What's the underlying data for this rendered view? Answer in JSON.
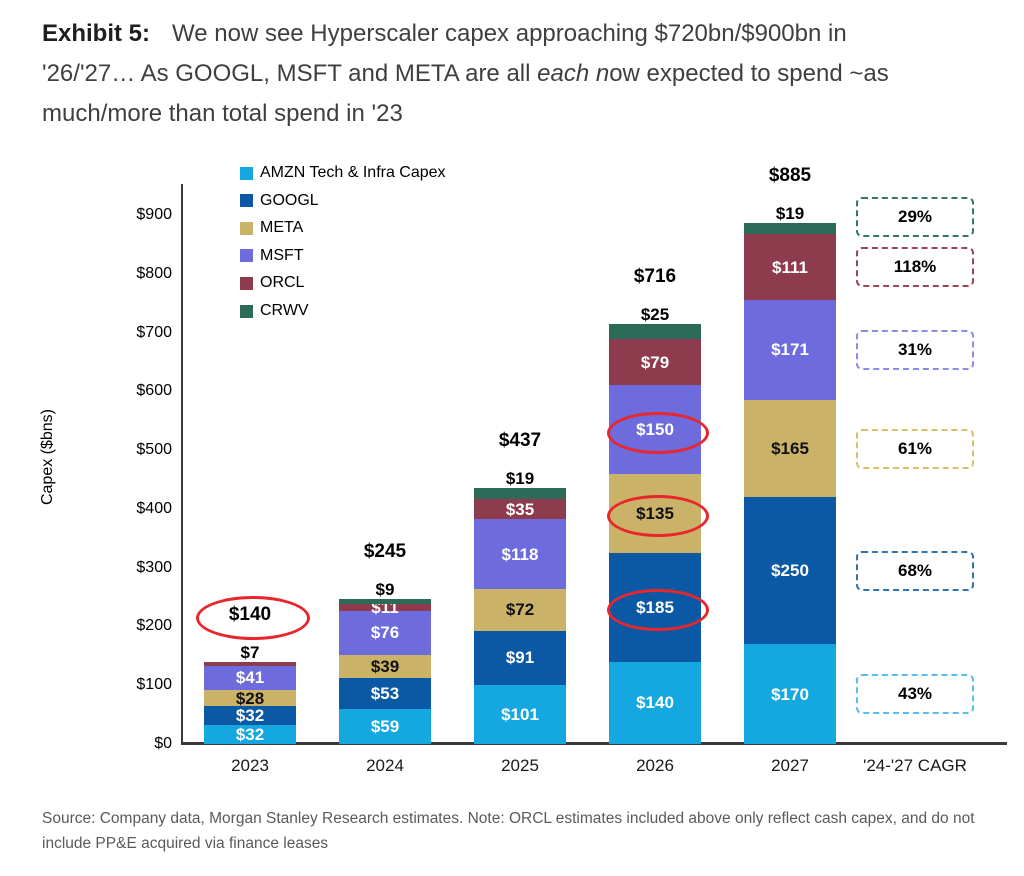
{
  "title": {
    "exhibit": "Exhibit 5:",
    "line1": "We now see Hyperscaler capex approaching $720bn/$900bn in",
    "line2_pre": "'26/'27… As GOOGL, MSFT and META are all ",
    "line2_italic": "each n",
    "line2_post": "ow expected to spend ~as",
    "line3": "much/more than total spend in '23"
  },
  "chart_data": {
    "type": "bar",
    "stacked": true,
    "ylabel": "Capex ($bns)",
    "ylim": [
      0,
      900
    ],
    "grid": false,
    "yticks": [
      "$0",
      "$100",
      "$200",
      "$300",
      "$400",
      "$500",
      "$600",
      "$700",
      "$800",
      "$900"
    ],
    "categories": [
      "2023",
      "2024",
      "2025",
      "2026",
      "2027"
    ],
    "cagr_label": "'24-'27 CAGR",
    "totals": [
      "$140",
      "$245",
      "$437",
      "$716",
      "$885"
    ],
    "total_circled": [
      true,
      false,
      false,
      false,
      false
    ],
    "highlight_color": "#E8262B",
    "series": [
      {
        "id": "AMZN",
        "name": "AMZN Tech & Infra Capex",
        "color": "#14A7E0",
        "label_color": "#ffffff",
        "values": [
          32,
          59,
          101,
          140,
          170
        ],
        "cagr": "43%",
        "cagr_border": "#58BEEF",
        "outside": [
          false,
          false,
          false,
          false,
          false
        ],
        "circled": [
          false,
          false,
          false,
          false,
          false
        ]
      },
      {
        "id": "GOOGL",
        "name": "GOOGL",
        "color": "#0B59A5",
        "label_color": "#ffffff",
        "values": [
          32,
          53,
          91,
          185,
          250
        ],
        "cagr": "68%",
        "cagr_border": "#2E74B5",
        "outside": [
          false,
          false,
          false,
          false,
          false
        ],
        "circled": [
          false,
          false,
          false,
          true,
          false
        ]
      },
      {
        "id": "META",
        "name": "META",
        "color": "#CBB269",
        "label_color": "#111111",
        "values": [
          28,
          39,
          72,
          135,
          165
        ],
        "cagr": "61%",
        "cagr_border": "#D8BE6C",
        "outside": [
          false,
          false,
          false,
          false,
          false
        ],
        "circled": [
          false,
          false,
          false,
          true,
          false
        ]
      },
      {
        "id": "MSFT",
        "name": "MSFT",
        "color": "#6E6BDC",
        "label_color": "#ffffff",
        "values": [
          41,
          76,
          118,
          150,
          171
        ],
        "cagr": "31%",
        "cagr_border": "#8D8AEA",
        "outside": [
          false,
          false,
          false,
          false,
          false
        ],
        "circled": [
          false,
          false,
          false,
          true,
          false
        ]
      },
      {
        "id": "ORCL",
        "name": "ORCL",
        "color": "#8E3B4D",
        "label_color": "#ffffff",
        "values": [
          7,
          11,
          35,
          79,
          111
        ],
        "cagr": "118%",
        "cagr_border": "#9C4456",
        "outside": [
          true,
          false,
          false,
          false,
          false
        ],
        "circled": [
          false,
          false,
          false,
          false,
          false
        ]
      },
      {
        "id": "CRWV",
        "name": "CRWV",
        "color": "#2D6B59",
        "label_color": "#ffffff",
        "values": [
          0,
          9,
          19,
          25,
          19
        ],
        "cagr": "29%",
        "cagr_border": "#33785F",
        "outside": [
          false,
          true,
          true,
          true,
          true
        ],
        "circled": [
          false,
          false,
          false,
          false,
          false
        ]
      }
    ]
  },
  "footer": {
    "line1": "Source: Company data, Morgan Stanley Research estimates. Note: ORCL estimates included above only reflect cash capex, and do not",
    "line2": "include PP&E acquired via finance leases"
  }
}
